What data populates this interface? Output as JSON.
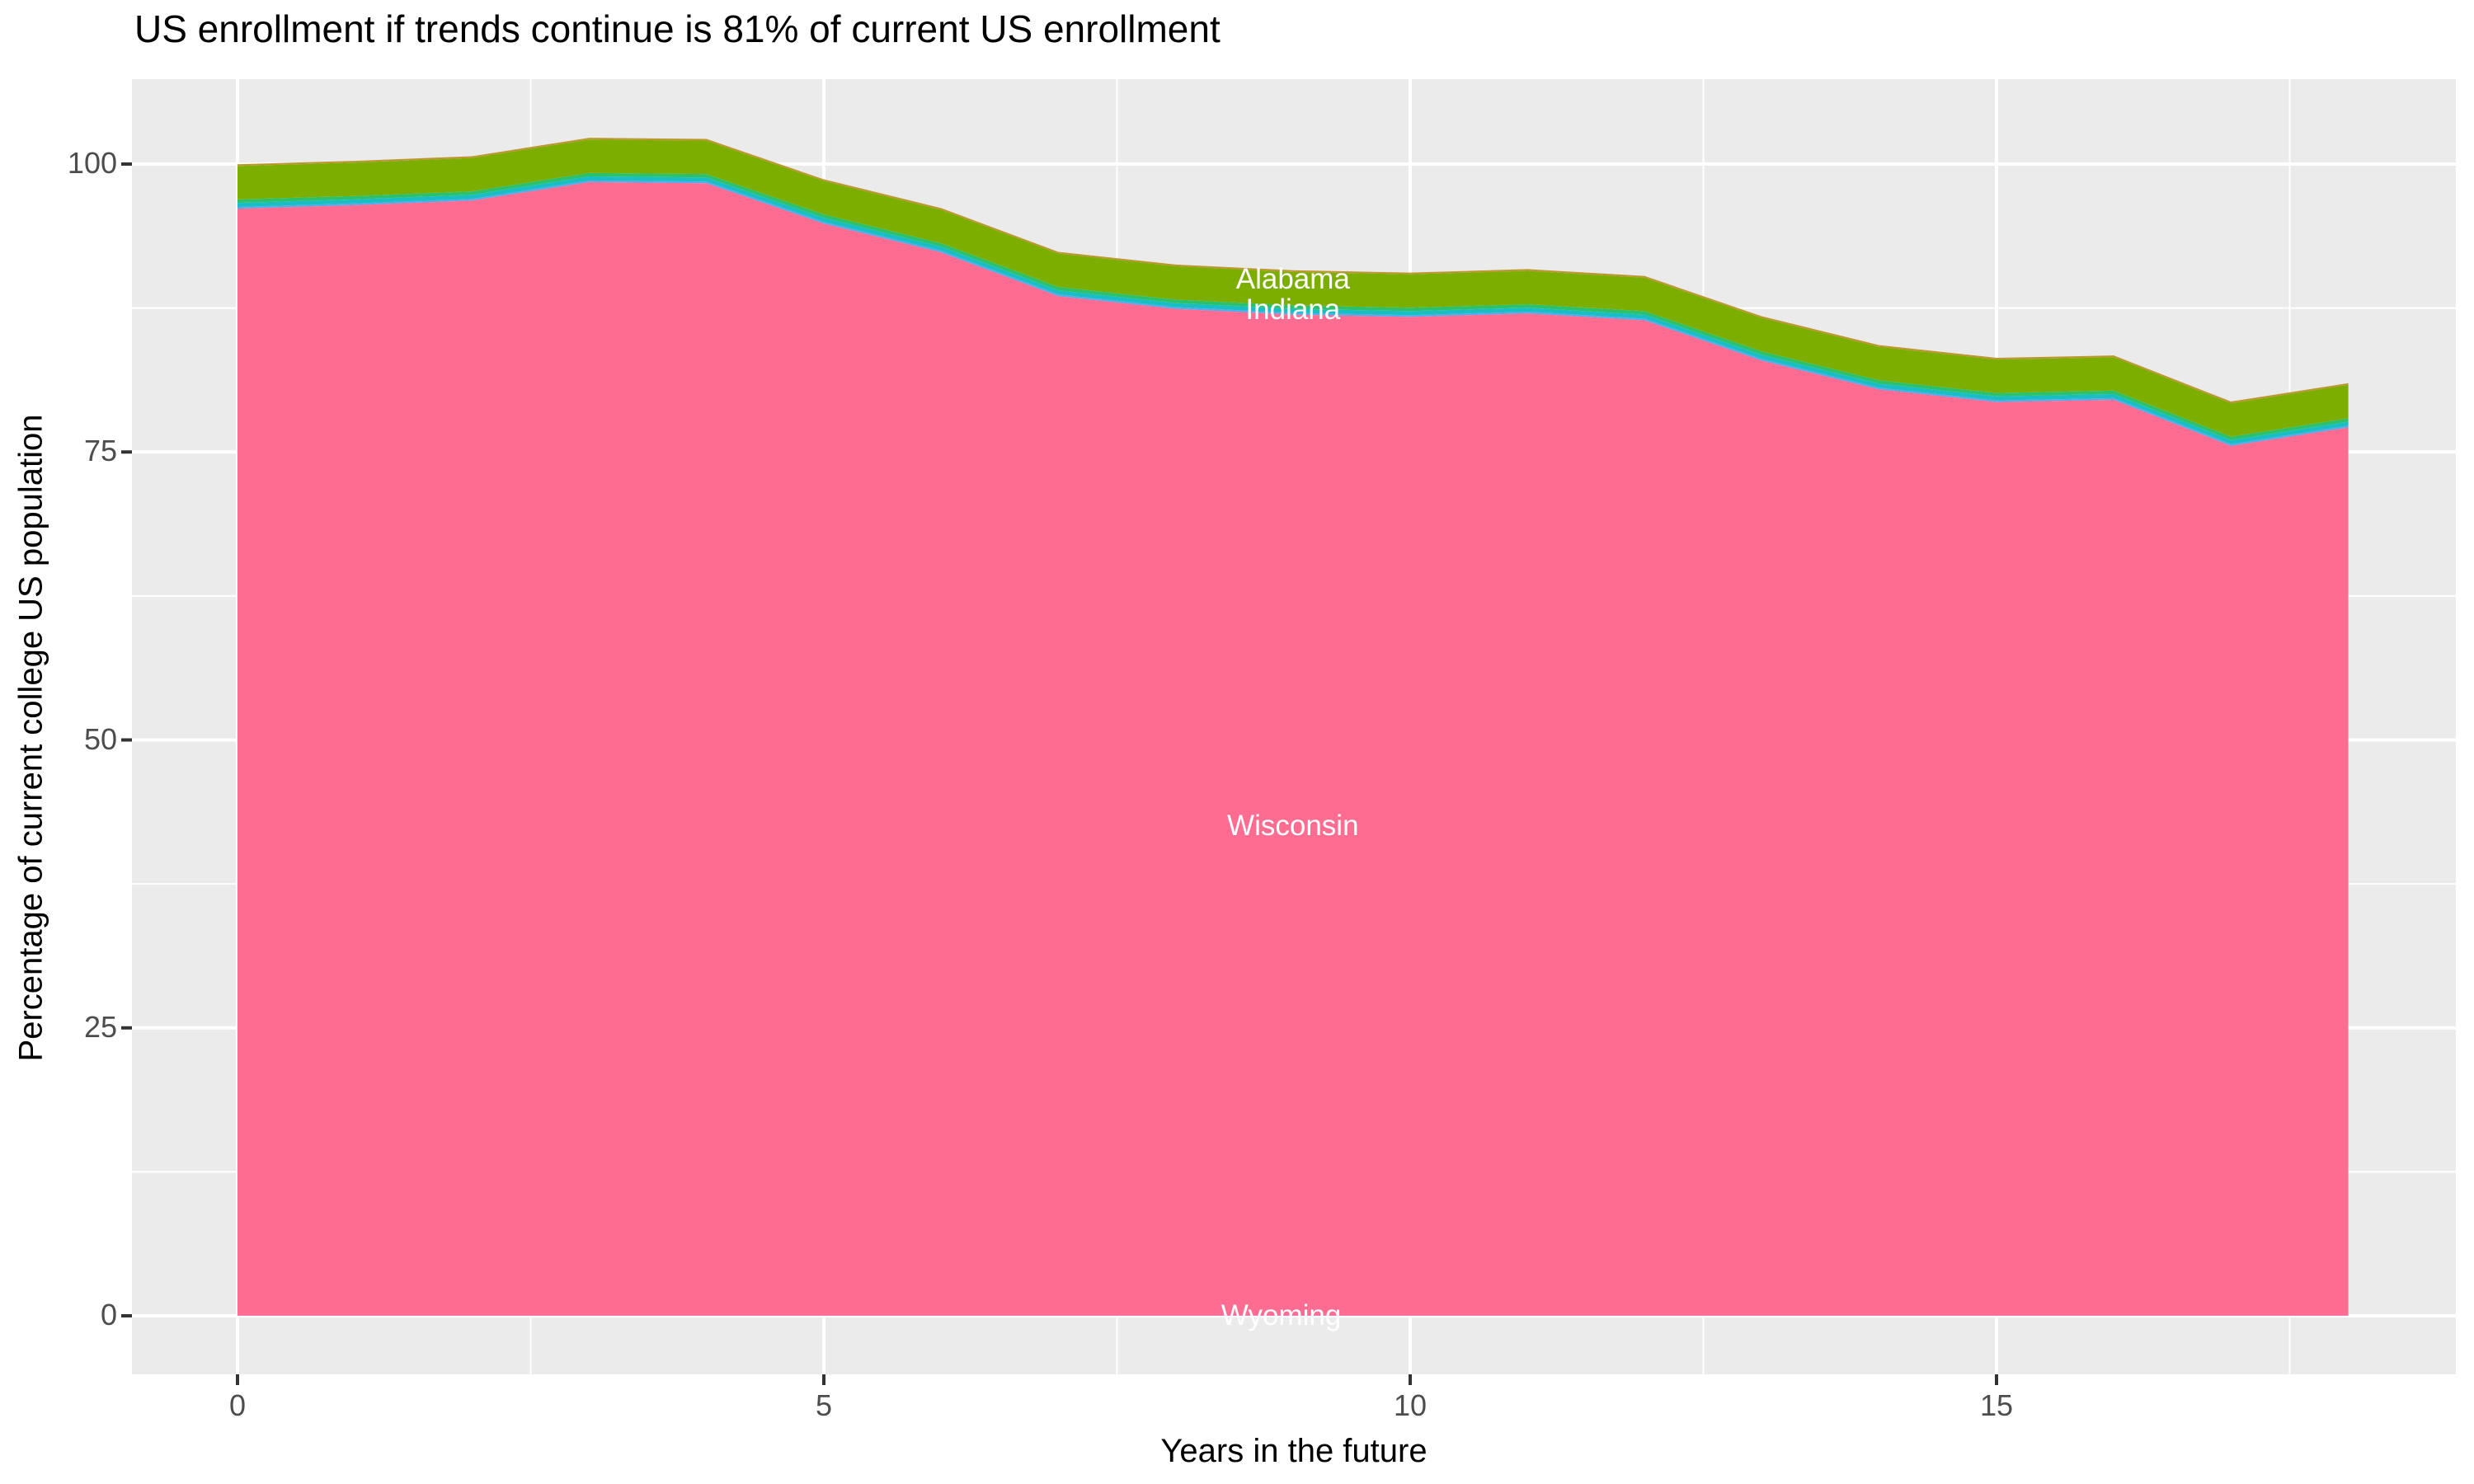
{
  "page": {
    "background": "#FFFFFF"
  },
  "chart_data": {
    "type": "area",
    "stacked": true,
    "title": "US enrollment if trends continue is 81% of current US enrollment",
    "xlabel": "Years in the future",
    "ylabel": "Percentage of current college US population",
    "x": [
      0,
      1,
      2,
      3,
      4,
      5,
      6,
      7,
      8,
      9,
      10,
      11,
      12,
      13,
      14,
      15,
      16,
      17,
      18
    ],
    "x_ticks": [
      0,
      5,
      10,
      15
    ],
    "x_minor_ticks": [
      2.5,
      7.5,
      12.5,
      17.5
    ],
    "y_ticks": [
      0,
      25,
      50,
      75,
      100
    ],
    "y_minor_ticks": [
      12.5,
      37.5,
      62.5,
      87.5
    ],
    "xlim": [
      -0.9,
      18.9
    ],
    "ylim": [
      -5.1,
      107.4
    ],
    "grid": true,
    "legend": "none",
    "panel_background": "#EBEBEB",
    "grid_color": "#FFFFFF",
    "tick_mark_color": "#333333",
    "tick_label_color": "#4D4D4D",
    "title_color": "#000000",
    "series": [
      {
        "name": "Wyoming",
        "color": "#E76BF3",
        "values": [
          0.03,
          0.03,
          0.03,
          0.03,
          0.03,
          0.03,
          0.03,
          0.03,
          0.03,
          0.03,
          0.03,
          0.03,
          0.03,
          0.03,
          0.03,
          0.03,
          0.03,
          0.03,
          0.03
        ]
      },
      {
        "name": "Wisconsin",
        "color": "#FF6C91",
        "values": [
          96.1,
          96.4,
          96.8,
          98.4,
          98.3,
          94.8,
          92.3,
          88.5,
          87.4,
          86.9,
          86.7,
          87.0,
          86.4,
          82.9,
          80.4,
          79.3,
          79.5,
          75.5,
          77.1
        ]
      },
      {
        "name": "unlabeled-sliver-blue",
        "color": "#55AAEB",
        "values": [
          0.15,
          0.15,
          0.15,
          0.15,
          0.15,
          0.15,
          0.15,
          0.15,
          0.15,
          0.15,
          0.15,
          0.15,
          0.15,
          0.15,
          0.15,
          0.15,
          0.15,
          0.15,
          0.15
        ]
      },
      {
        "name": "Indiana",
        "color": "#18BEC3",
        "values": [
          0.35,
          0.35,
          0.35,
          0.35,
          0.35,
          0.35,
          0.35,
          0.35,
          0.35,
          0.35,
          0.35,
          0.35,
          0.35,
          0.35,
          0.35,
          0.35,
          0.35,
          0.35,
          0.35
        ]
      },
      {
        "name": "unlabeled-sliver-green",
        "color": "#2DC06B",
        "values": [
          0.3,
          0.3,
          0.3,
          0.3,
          0.3,
          0.3,
          0.3,
          0.3,
          0.3,
          0.3,
          0.3,
          0.3,
          0.3,
          0.3,
          0.3,
          0.3,
          0.3,
          0.3,
          0.3
        ]
      },
      {
        "name": "Alabama",
        "color": "#7CAE00",
        "values": [
          2.9,
          2.9,
          2.9,
          2.9,
          2.9,
          2.9,
          2.9,
          2.9,
          2.9,
          2.9,
          2.9,
          2.9,
          2.9,
          2.9,
          2.9,
          2.9,
          2.9,
          2.9,
          2.9
        ]
      },
      {
        "name": "unlabeled-sliver-tan",
        "color": "#BC9730",
        "values": [
          0.15,
          0.15,
          0.15,
          0.15,
          0.15,
          0.15,
          0.15,
          0.15,
          0.15,
          0.15,
          0.15,
          0.15,
          0.15,
          0.15,
          0.15,
          0.15,
          0.15,
          0.15,
          0.15
        ]
      }
    ],
    "totals_by_year": [
      100.0,
      100.3,
      100.7,
      102.3,
      102.2,
      98.7,
      96.2,
      92.4,
      91.3,
      90.8,
      90.6,
      90.9,
      90.3,
      86.8,
      84.3,
      83.2,
      83.4,
      79.4,
      81.0
    ],
    "area_labels": [
      {
        "text": "Alabama",
        "x": 9.0,
        "y": 90.0
      },
      {
        "text": "Indiana",
        "x": 9.0,
        "y": 87.3
      },
      {
        "text": "Wisconsin",
        "x": 9.0,
        "y": 42.5
      },
      {
        "text": "Wyoming",
        "x": 8.9,
        "y": 0.0
      }
    ]
  }
}
